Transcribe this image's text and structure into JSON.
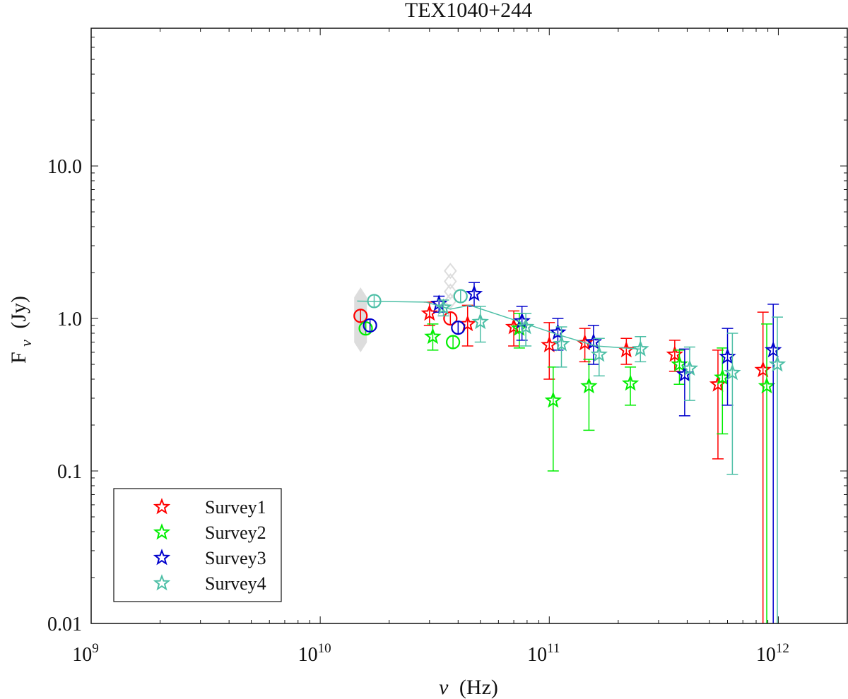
{
  "chart_data": {
    "type": "scatter",
    "title": "TEX1040+244",
    "xlabel_sym": "ν",
    "xlabel_unit": "(Hz)",
    "ylabel_main": "F",
    "ylabel_sub": "ν",
    "ylabel_unit": "(Jy)",
    "x_scale": "log",
    "y_scale": "log",
    "xlim": [
      1000000000.0,
      2000000000000.0
    ],
    "ylim": [
      0.01,
      80
    ],
    "x_ticks": [
      {
        "value": 1000000000.0,
        "base": "10",
        "exp": "9"
      },
      {
        "value": 10000000000.0,
        "base": "10",
        "exp": "10"
      },
      {
        "value": 100000000000.0,
        "base": "10",
        "exp": "11"
      },
      {
        "value": 1000000000000.0,
        "base": "10",
        "exp": "12"
      }
    ],
    "y_ticks": [
      {
        "value": 0.01,
        "label": "0.01"
      },
      {
        "value": 0.1,
        "label": "0.1"
      },
      {
        "value": 1,
        "label": "1.0"
      },
      {
        "value": 10,
        "label": "10.0"
      }
    ],
    "legend_position": "bottom-left",
    "series": [
      {
        "name": "Survey1",
        "color": "#ff0000",
        "stars": [
          {
            "x": 30000000000.0,
            "y": 1.08,
            "lo": 0.9,
            "hi": 1.28
          },
          {
            "x": 44000000000.0,
            "y": 0.92,
            "lo": 0.66,
            "hi": 1.22
          },
          {
            "x": 70000000000.0,
            "y": 0.88,
            "lo": 0.66,
            "hi": 1.12
          },
          {
            "x": 100000000000.0,
            "y": 0.67,
            "lo": 0.4,
            "hi": 0.94
          },
          {
            "x": 143000000000.0,
            "y": 0.69,
            "lo": 0.52,
            "hi": 0.86
          },
          {
            "x": 217000000000.0,
            "y": 0.62,
            "lo": 0.5,
            "hi": 0.74
          },
          {
            "x": 353000000000.0,
            "y": 0.58,
            "lo": 0.45,
            "hi": 0.72
          },
          {
            "x": 545000000000.0,
            "y": 0.37,
            "lo": 0.12,
            "hi": 0.62
          },
          {
            "x": 857000000000.0,
            "y": 0.46,
            "lo": 0.01,
            "hi": 1.1
          }
        ],
        "circles": [
          {
            "x": 15000000000.0,
            "y": 1.04
          },
          {
            "x": 37000000000.0,
            "y": 1.0
          }
        ]
      },
      {
        "name": "Survey2",
        "color": "#00ee00",
        "stars": [
          {
            "x": 31000000000.0,
            "y": 0.76,
            "lo": 0.62,
            "hi": 0.92
          },
          {
            "x": 74000000000.0,
            "y": 0.86,
            "lo": 0.64,
            "hi": 1.08
          },
          {
            "x": 104000000000.0,
            "y": 0.29,
            "lo": 0.1,
            "hi": 0.48
          },
          {
            "x": 149000000000.0,
            "y": 0.36,
            "lo": 0.185,
            "hi": 0.54
          },
          {
            "x": 226000000000.0,
            "y": 0.375,
            "lo": 0.27,
            "hi": 0.48
          },
          {
            "x": 370000000000.0,
            "y": 0.5,
            "lo": 0.37,
            "hi": 0.62
          },
          {
            "x": 570000000000.0,
            "y": 0.41,
            "lo": 0.175,
            "hi": 0.64
          },
          {
            "x": 890000000000.0,
            "y": 0.36,
            "lo": 0.01,
            "hi": 0.92
          }
        ],
        "circles": [
          {
            "x": 15800000000.0,
            "y": 0.86
          },
          {
            "x": 38000000000.0,
            "y": 0.7
          }
        ]
      },
      {
        "name": "Survey3",
        "color": "#0000cc",
        "stars": [
          {
            "x": 33000000000.0,
            "y": 1.25,
            "lo": 1.1,
            "hi": 1.4
          },
          {
            "x": 47000000000.0,
            "y": 1.45,
            "lo": 1.2,
            "hi": 1.72
          },
          {
            "x": 76000000000.0,
            "y": 0.96,
            "lo": 0.72,
            "hi": 1.2
          },
          {
            "x": 109000000000.0,
            "y": 0.81,
            "lo": 0.62,
            "hi": 1.0
          },
          {
            "x": 156000000000.0,
            "y": 0.7,
            "lo": 0.5,
            "hi": 0.9
          },
          {
            "x": 390000000000.0,
            "y": 0.43,
            "lo": 0.23,
            "hi": 0.63
          },
          {
            "x": 600000000000.0,
            "y": 0.56,
            "lo": 0.27,
            "hi": 0.86
          },
          {
            "x": 950000000000.0,
            "y": 0.62,
            "lo": 0.01,
            "hi": 1.24
          }
        ],
        "circles": [
          {
            "x": 16500000000.0,
            "y": 0.9
          },
          {
            "x": 40000000000.0,
            "y": 0.87
          }
        ]
      },
      {
        "name": "Survey4",
        "color": "#4dbfa6",
        "stars": [
          {
            "x": 34500000000.0,
            "y": 1.18,
            "lo": 1.04,
            "hi": 1.32
          },
          {
            "x": 50000000000.0,
            "y": 0.95,
            "lo": 0.7,
            "hi": 1.2
          },
          {
            "x": 79000000000.0,
            "y": 0.88,
            "lo": 0.66,
            "hi": 1.08
          },
          {
            "x": 113000000000.0,
            "y": 0.68,
            "lo": 0.48,
            "hi": 0.88
          },
          {
            "x": 165000000000.0,
            "y": 0.58,
            "lo": 0.42,
            "hi": 0.74
          },
          {
            "x": 250000000000.0,
            "y": 0.63,
            "lo": 0.52,
            "hi": 0.76
          },
          {
            "x": 410000000000.0,
            "y": 0.47,
            "lo": 0.29,
            "hi": 0.65
          },
          {
            "x": 630000000000.0,
            "y": 0.44,
            "lo": 0.095,
            "hi": 0.8
          },
          {
            "x": 990000000000.0,
            "y": 0.5,
            "lo": 0.01,
            "hi": 1.02
          }
        ],
        "circles": [
          {
            "x": 17200000000.0,
            "y": 1.3
          },
          {
            "x": 41000000000.0,
            "y": 1.4
          }
        ],
        "line": [
          {
            "x": 14500000000.0,
            "y": 1.3
          },
          {
            "x": 29000000000.0,
            "y": 1.28
          },
          {
            "x": 37000000000.0,
            "y": 1.15
          },
          {
            "x": 45000000000.0,
            "y": 1.22
          },
          {
            "x": 70000000000.0,
            "y": 0.98
          },
          {
            "x": 110000000000.0,
            "y": 0.78
          },
          {
            "x": 160000000000.0,
            "y": 0.66
          },
          {
            "x": 250000000000.0,
            "y": 0.63
          }
        ]
      }
    ],
    "gray_markers": {
      "color": "#dddddd",
      "band": {
        "x": 15000000000.0,
        "lo": 0.6,
        "hi": 1.6
      },
      "diamonds": [
        {
          "x": 37000000000.0,
          "y": 2.05
        },
        {
          "x": 37000000000.0,
          "y": 1.75
        },
        {
          "x": 37000000000.0,
          "y": 1.5
        },
        {
          "x": 37000000000.0,
          "y": 1.3
        }
      ]
    }
  }
}
